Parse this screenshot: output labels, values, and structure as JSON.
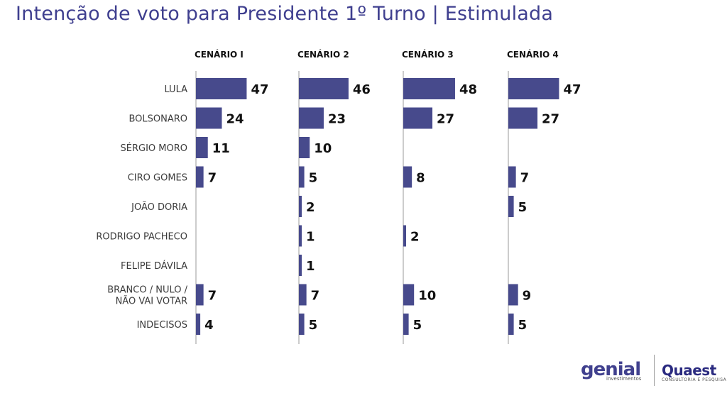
{
  "title": "Intenção de voto para Presidente 1º Turno | Estimulada",
  "colors": {
    "bar": "#474a8c",
    "title": "#3f3f8f",
    "text": "#333333"
  },
  "logos": {
    "genial": "genial",
    "genial_sub": "investimentos",
    "quaest": "Quaest",
    "quaest_sub": "CONSULTORIA E PESQUISA"
  },
  "chart_data": {
    "type": "bar",
    "orientation": "horizontal",
    "categories": [
      "LULA",
      "BOLSONARO",
      "SÉRGIO MORO",
      "CIRO GOMES",
      "JOÃO DORIA",
      "RODRIGO PACHECO",
      "FELIPE DÁVILA",
      "BRANCO / NULO / NÃO VAI VOTAR",
      "INDECISOS"
    ],
    "category_lines": [
      [
        "LULA"
      ],
      [
        "BOLSONARO"
      ],
      [
        "SÉRGIO MORO"
      ],
      [
        "CIRO GOMES"
      ],
      [
        "JOÃO DORIA"
      ],
      [
        "RODRIGO PACHECO"
      ],
      [
        "FELIPE DÁVILA"
      ],
      [
        "BRANCO / NULO /",
        "NÃO VAI VOTAR"
      ],
      [
        "INDECISOS"
      ]
    ],
    "series": [
      {
        "name": "CENÁRIO I",
        "values": [
          47,
          24,
          11,
          7,
          null,
          null,
          null,
          7,
          4
        ]
      },
      {
        "name": "CENÁRIO 2",
        "values": [
          46,
          23,
          10,
          5,
          2,
          1,
          1,
          7,
          5
        ]
      },
      {
        "name": "CENÁRIO 3",
        "values": [
          48,
          27,
          null,
          8,
          null,
          2,
          null,
          10,
          5
        ]
      },
      {
        "name": "CENÁRIO 4",
        "values": [
          47,
          27,
          null,
          7,
          5,
          null,
          null,
          9,
          5
        ]
      }
    ]
  }
}
